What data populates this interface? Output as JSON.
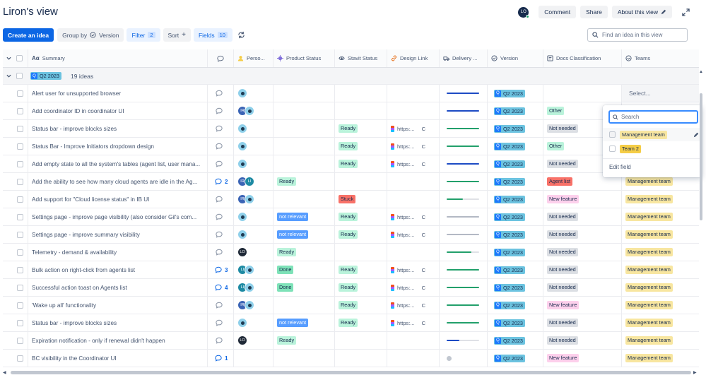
{
  "title": "Liron's view",
  "header": {
    "avatar_initials": "LO",
    "comment_label": "Comment",
    "share_label": "Share",
    "about_label": "About this view"
  },
  "toolbar": {
    "create_label": "Create an idea",
    "group_by_label": "Group by",
    "group_by_value": "Version",
    "filter_label": "Filter",
    "filter_count": "2",
    "sort_label": "Sort",
    "fields_label": "Fields",
    "fields_count": "10",
    "search_placeholder": "Find an idea in this view"
  },
  "columns": {
    "summary": "Summary",
    "person": "Perso...",
    "product_status": "Product Status",
    "stavit_status": "Stavit Status",
    "design_link": "Design Link",
    "delivery": "Delivery ...",
    "version": "Version",
    "docs": "Docs Classification",
    "teams": "Teams"
  },
  "group": {
    "tag": "Q2 2023",
    "count": "19 ideas"
  },
  "colors": {
    "primary": "#0c66e4",
    "ready_bg": "#baf3db",
    "not_relevant_bg": "#579dff",
    "done_bg": "#7ee2b8",
    "stuck_bg": "#f87168",
    "other_bg": "#baf3db",
    "not_needed_bg": "#dcdfe4",
    "agent_list_bg": "#f87168",
    "new_feature_bg": "#fdd0ec",
    "management_team_bg": "#f8e6a0",
    "team2_bg": "#f5cd47",
    "version_bg": "#6cc3e0"
  },
  "rows": [
    {
      "summary": "Alert user for unsupported browser",
      "comment": "",
      "avatars": [
        "person"
      ],
      "product_status": "",
      "stavit_status": "",
      "design_link": "",
      "delivery": {
        "color": "#1d4bc4",
        "progress": 1.0
      },
      "version": "Q2 2023",
      "docs": "",
      "teams": "Select..."
    },
    {
      "summary": "Add coordinator ID in coordinator UI",
      "comment": "",
      "avatars": [
        "IR",
        "person"
      ],
      "product_status": "",
      "stavit_status": "",
      "design_link": "",
      "delivery": {
        "color": "#1d4bc4",
        "progress": 1.0
      },
      "version": "Q2 2023",
      "docs": "Other",
      "teams": ""
    },
    {
      "summary": "Status bar - improve blocks sizes",
      "comment": "",
      "avatars": [
        "person"
      ],
      "product_status": "",
      "stavit_status": "Ready",
      "design_link": "https:...",
      "delivery": {
        "color": "#22a06b",
        "progress": 1.0
      },
      "version": "Q2 2023",
      "docs": "Not needed",
      "teams": ""
    },
    {
      "summary": "Status Bar - Improve Initiators dropdown design",
      "comment": "",
      "avatars": [
        "person"
      ],
      "product_status": "",
      "stavit_status": "Ready",
      "design_link": "https:...",
      "delivery": {
        "color": "#22a06b",
        "progress": 1.0
      },
      "version": "Q2 2023",
      "docs": "Other",
      "teams": ""
    },
    {
      "summary": "Add empty state to all the system's tables (agent list, user mana...",
      "comment": "",
      "avatars": [
        "person"
      ],
      "product_status": "",
      "stavit_status": "Ready",
      "design_link": "https:...",
      "delivery": {
        "color": "#1d4bc4",
        "progress": 1.0
      },
      "version": "Q2 2023",
      "docs": "Not needed",
      "teams": ""
    },
    {
      "summary": "Add the ability to see how many cloud agents are idle in the Ag...",
      "comment": "2",
      "avatars": [
        "IR",
        "LI"
      ],
      "product_status": "Ready",
      "stavit_status": "",
      "design_link": "",
      "delivery": {
        "color": "#22a06b",
        "progress": 1.0
      },
      "version": "Q2 2023",
      "docs": "Agent list",
      "teams": "Management team"
    },
    {
      "summary": "Add support for \"Cloud license status\" in IB UI",
      "comment": "",
      "avatars": [
        "IR",
        "person"
      ],
      "product_status": "",
      "stavit_status": "Stuck",
      "design_link": "",
      "delivery": {
        "color": "#22a06b",
        "progress": 0.5
      },
      "version": "Q2 2023",
      "docs": "New feature",
      "teams": "Management team"
    },
    {
      "summary": "Settings page - improve page visibility (also consider Gil's com...",
      "comment": "",
      "avatars": [
        "person"
      ],
      "product_status": "not relevant",
      "stavit_status": "Ready",
      "design_link": "https:...",
      "delivery": {
        "color": "#b3b9c4",
        "progress": 1.0
      },
      "version": "Q2 2023",
      "docs": "Not needed",
      "teams": "Management team"
    },
    {
      "summary": "Settings page - improve summary visibility",
      "comment": "",
      "avatars": [
        "person"
      ],
      "product_status": "not relevant",
      "stavit_status": "Ready",
      "design_link": "https:...",
      "delivery": {
        "color": "#b3b9c4",
        "progress": 1.0
      },
      "version": "Q2 2023",
      "docs": "Not needed",
      "teams": "Management team"
    },
    {
      "summary": "Telemetry - demand & availability",
      "comment": "",
      "avatars": [
        "LO"
      ],
      "product_status": "Ready",
      "stavit_status": "",
      "design_link": "",
      "delivery": {
        "color": "#22a06b",
        "progress": 0.75
      },
      "version": "Q2 2023",
      "docs": "Not needed",
      "teams": "Management team"
    },
    {
      "summary": "Bulk action on right-click from agents list",
      "comment": "3",
      "avatars": [
        "LI",
        "person"
      ],
      "product_status": "Done",
      "stavit_status": "Ready",
      "design_link": "https:...",
      "delivery": {
        "color": "#22a06b",
        "progress": 1.0
      },
      "version": "Q2 2023",
      "docs": "Not needed",
      "teams": "Management team"
    },
    {
      "summary": "Successful action toast on Agents list",
      "comment": "4",
      "avatars": [
        "LI",
        "person"
      ],
      "product_status": "Done",
      "stavit_status": "Ready",
      "design_link": "https:...",
      "delivery": {
        "color": "#22a06b",
        "progress": 1.0
      },
      "version": "Q2 2023",
      "docs": "Not needed",
      "teams": "Management team"
    },
    {
      "summary": "'Wake up all' functionality",
      "comment": "",
      "avatars": [
        "IR",
        "person"
      ],
      "product_status": "",
      "stavit_status": "Ready",
      "design_link": "https:...",
      "delivery": {
        "color": "#22a06b",
        "progress": 1.0
      },
      "version": "Q2 2023",
      "docs": "New feature",
      "teams": "Management team"
    },
    {
      "summary": "Status bar - improve blocks sizes",
      "comment": "",
      "avatars": [
        "person"
      ],
      "product_status": "not relevant",
      "stavit_status": "Ready",
      "design_link": "https:...",
      "delivery": {
        "color": "#22a06b",
        "progress": 1.0
      },
      "version": "Q2 2023",
      "docs": "Not needed",
      "teams": "Management team"
    },
    {
      "summary": "Expiration notification - only if renewal didn't happen",
      "comment": "",
      "avatars": [
        "LO"
      ],
      "product_status": "Ready",
      "stavit_status": "",
      "design_link": "",
      "delivery": {
        "color": "#1d4bc4",
        "progress": 0.4
      },
      "version": "Q2 2023",
      "docs": "Not needed",
      "teams": "Management team"
    },
    {
      "summary": "BC visibility in the Coordinator UI",
      "comment": "1",
      "avatars": [],
      "product_status": "",
      "stavit_status": "",
      "design_link": "",
      "delivery": null,
      "version": "Q2 2023",
      "docs": "New feature",
      "teams": "Management team"
    }
  ],
  "dropdown": {
    "search_placeholder": "Search",
    "options": [
      "Management team",
      "Team 2"
    ],
    "edit_label": "Edit field"
  },
  "icons": [
    "chevron-down-icon",
    "checkbox-icon",
    "text-type-icon",
    "comment-icon",
    "person-icon",
    "product-status-icon",
    "stavit-status-icon",
    "link-icon",
    "delivery-icon",
    "version-icon",
    "docs-icon",
    "teams-icon",
    "pencil-icon",
    "expand-icon",
    "search-icon",
    "refresh-icon"
  ]
}
